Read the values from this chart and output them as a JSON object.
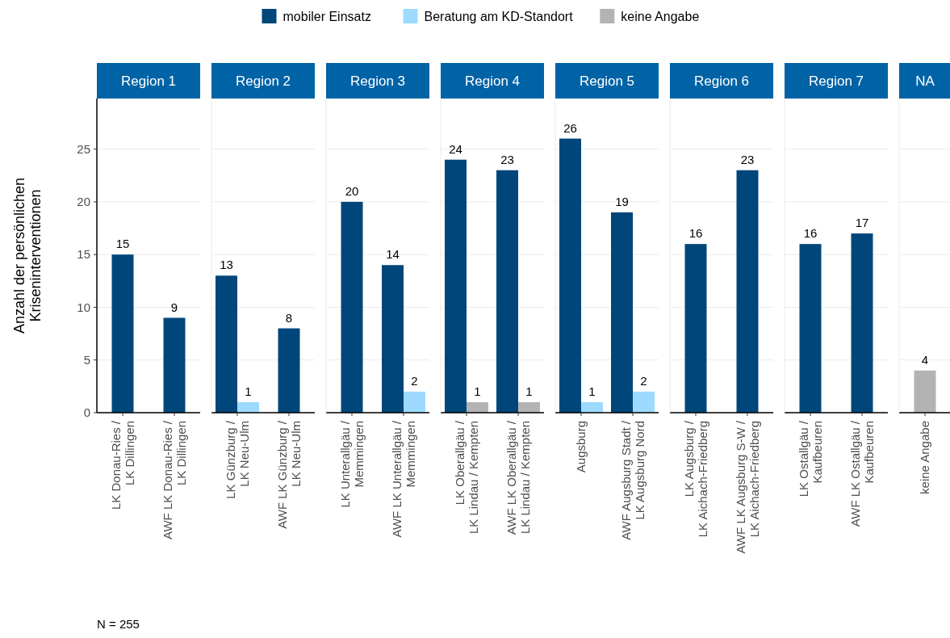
{
  "chart_data": [
    {
      "type": "bar",
      "title": "Region 1",
      "ylabel": "Anzahl der persönlichen\nKriseninterventionen",
      "categories": [
        "LK Donau-Ries /\nLK Dillingen",
        "AWF LK Donau-Ries /\nLK Dillingen"
      ],
      "series": [
        {
          "name": "mobiler Einsatz",
          "color": "#00467a",
          "values": [
            15,
            9
          ]
        },
        {
          "name": "Beratung am KD-Standort",
          "color": "#9edaff",
          "values": [
            null,
            null
          ]
        },
        {
          "name": "keine Angabe",
          "color": "#b3b3b3",
          "values": [
            null,
            null
          ]
        }
      ],
      "ylim": [
        0,
        29.8
      ],
      "yticks": [
        0,
        5,
        10,
        15,
        20,
        25
      ],
      "grid": "y",
      "legend": "top",
      "data_labels": true,
      "annotations": [
        "N = 255"
      ]
    },
    {
      "type": "bar",
      "title": "Region 2",
      "categories": [
        "LK Günzburg /\nLK Neu-Ulm",
        "AWF LK Günzburg /\nLK Neu-Ulm"
      ],
      "series": [
        {
          "color": "#00467a",
          "values": [
            13,
            8
          ]
        },
        {
          "color": "#9edaff",
          "values": [
            1,
            null
          ]
        }
      ],
      "ylim": [
        0,
        29.8
      ],
      "yticks": [
        0,
        5,
        10,
        15,
        20,
        25
      ],
      "grid": "y",
      "tick_labels": "x",
      "data_labels": true
    },
    {
      "type": "bar",
      "title": "Region 3",
      "categories": [
        "LK Unterallgäu /\nMemmingen",
        "AWF LK Unterallgäu /\nMemmingen"
      ],
      "series": [
        {
          "color": "#00467a",
          "values": [
            20,
            14
          ]
        },
        {
          "color": "#9edaff",
          "values": [
            null,
            2
          ]
        }
      ],
      "ylim": [
        0,
        29.8
      ],
      "yticks": [
        0,
        5,
        10,
        15,
        20,
        25
      ],
      "grid": "y",
      "tick_labels": "x",
      "data_labels": true
    },
    {
      "type": "bar",
      "title": "Region 4",
      "categories": [
        "LK Oberallgäu /\nLK Lindau / Kempten",
        "AWF LK Oberallgäu /\nLK Lindau / Kempten"
      ],
      "series": [
        {
          "color": "#00467a",
          "values": [
            24,
            23
          ]
        },
        {
          "color": "#b3b3b3",
          "values": [
            1,
            1
          ]
        }
      ],
      "ylim": [
        0,
        29.8
      ],
      "yticks": [
        0,
        5,
        10,
        15,
        20,
        25
      ],
      "grid": "y",
      "tick_labels": "x",
      "data_labels": true
    },
    {
      "type": "bar",
      "title": "Region 5",
      "categories": [
        "Augsburg",
        "AWF Augsburg Stadt /\nLK Augsburg Nord"
      ],
      "series": [
        {
          "color": "#00467a",
          "values": [
            26,
            19
          ]
        },
        {
          "color": "#9edaff",
          "values": [
            1,
            2
          ]
        }
      ],
      "ylim": [
        0,
        29.8
      ],
      "yticks": [
        0,
        5,
        10,
        15,
        20,
        25
      ],
      "grid": "y",
      "tick_labels": "x",
      "data_labels": true
    },
    {
      "type": "bar",
      "title": "Region 6",
      "categories": [
        "LK Augsburg /\nLK Aichach-Friedberg",
        "AWF LK Augsburg S-W /\nLK Aichach-Friedberg"
      ],
      "series": [
        {
          "color": "#00467a",
          "values": [
            16,
            23
          ]
        }
      ],
      "ylim": [
        0,
        29.8
      ],
      "yticks": [
        0,
        5,
        10,
        15,
        20,
        25
      ],
      "grid": "y",
      "tick_labels": "x",
      "data_labels": true
    },
    {
      "type": "bar",
      "title": "Region 7",
      "categories": [
        "LK Ostallgäu /\nKaufbeuren",
        "AWF LK Ostallgäu /\nKaufbeuren"
      ],
      "series": [
        {
          "color": "#00467a",
          "values": [
            16,
            17
          ]
        }
      ],
      "ylim": [
        0,
        29.8
      ],
      "yticks": [
        0,
        5,
        10,
        15,
        20,
        25
      ],
      "grid": "y",
      "tick_labels": "x",
      "data_labels": true
    },
    {
      "type": "bar",
      "title": "NA",
      "categories": [
        "keine Angabe"
      ],
      "series": [
        {
          "color": "#b3b3b3",
          "values": [
            4
          ]
        }
      ],
      "ylim": [
        0,
        29.8
      ],
      "yticks": [
        0,
        5,
        10,
        15,
        20,
        25
      ],
      "grid": "y",
      "tick_labels": "x",
      "data_labels": true
    }
  ]
}
